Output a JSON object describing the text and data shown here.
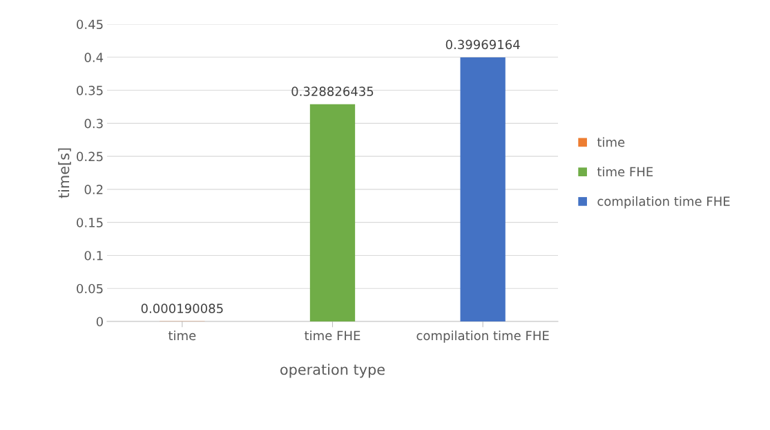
{
  "chart_data": {
    "type": "bar",
    "xlabel": "operation type",
    "ylabel": "time[s]",
    "categories": [
      "time",
      "time FHE",
      "compilation time FHE"
    ],
    "series": [
      {
        "name": "time",
        "color": "#ed7d31",
        "values": [
          0.000190085,
          null,
          null
        ]
      },
      {
        "name": "time FHE",
        "color": "#70ad47",
        "values": [
          null,
          0.328826435,
          null
        ]
      },
      {
        "name": "compilation time FHE",
        "color": "#4472c4",
        "values": [
          null,
          null,
          0.39969164
        ]
      }
    ],
    "data_labels": true,
    "ylim": [
      0,
      0.45
    ],
    "yticks": [
      0,
      0.05,
      0.1,
      0.15,
      0.2,
      0.25,
      0.3,
      0.35,
      0.4,
      0.45
    ],
    "grid": "y",
    "legend": "right"
  }
}
